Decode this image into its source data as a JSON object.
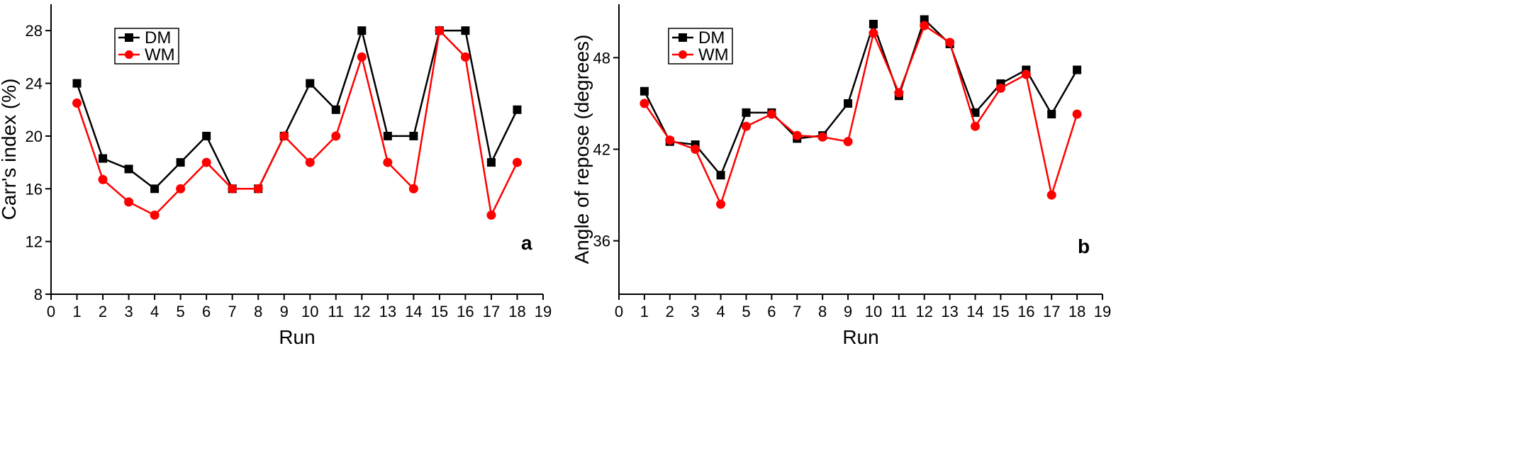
{
  "chart_data": [
    {
      "type": "line",
      "panel_label": "a",
      "xlabel": "Run",
      "ylabel": "Carr's index (%)",
      "xlim": [
        0,
        19
      ],
      "ylim": [
        8,
        30
      ],
      "x_ticks": [
        0,
        1,
        2,
        3,
        4,
        5,
        6,
        7,
        8,
        9,
        10,
        11,
        12,
        13,
        14,
        15,
        16,
        17,
        18,
        19
      ],
      "y_ticks": [
        8,
        12,
        16,
        20,
        24,
        28
      ],
      "legend_position": "top-left",
      "x": [
        1,
        2,
        3,
        4,
        5,
        6,
        7,
        8,
        9,
        10,
        11,
        12,
        13,
        14,
        15,
        16,
        17,
        18
      ],
      "series": [
        {
          "name": "DM",
          "color": "#000000",
          "marker": "square",
          "values": [
            24,
            18.3,
            17.5,
            16,
            18,
            20,
            16,
            16,
            20,
            24,
            22,
            28,
            20,
            20,
            28,
            28,
            18,
            22
          ]
        },
        {
          "name": "WM",
          "color": "#ff0000",
          "marker": "circle",
          "values": [
            22.5,
            16.7,
            15,
            14,
            16,
            18,
            16,
            16,
            20,
            18,
            20,
            26,
            18,
            16,
            28,
            26,
            14,
            18
          ]
        }
      ]
    },
    {
      "type": "line",
      "panel_label": "b",
      "xlabel": "Run",
      "ylabel": "Angle of repose (degrees)",
      "xlim": [
        0,
        19
      ],
      "ylim": [
        32.5,
        51.5
      ],
      "x_ticks": [
        0,
        1,
        2,
        3,
        4,
        5,
        6,
        7,
        8,
        9,
        10,
        11,
        12,
        13,
        14,
        15,
        16,
        17,
        18,
        19
      ],
      "y_ticks": [
        36,
        42,
        48
      ],
      "legend_position": "top-left",
      "x": [
        1,
        2,
        3,
        4,
        5,
        6,
        7,
        8,
        9,
        10,
        11,
        12,
        13,
        14,
        15,
        16,
        17,
        18
      ],
      "series": [
        {
          "name": "DM",
          "color": "#000000",
          "marker": "square",
          "values": [
            45.8,
            42.5,
            42.3,
            40.3,
            44.4,
            44.4,
            42.7,
            42.9,
            45,
            50.2,
            45.5,
            50.5,
            48.9,
            44.4,
            46.3,
            47.2,
            44.3,
            47.2
          ]
        },
        {
          "name": "WM",
          "color": "#ff0000",
          "marker": "circle",
          "values": [
            45,
            42.6,
            42,
            38.4,
            43.5,
            44.3,
            42.9,
            42.8,
            42.5,
            49.6,
            45.7,
            50.1,
            49,
            43.5,
            46,
            46.9,
            39,
            44.3
          ]
        }
      ]
    }
  ]
}
